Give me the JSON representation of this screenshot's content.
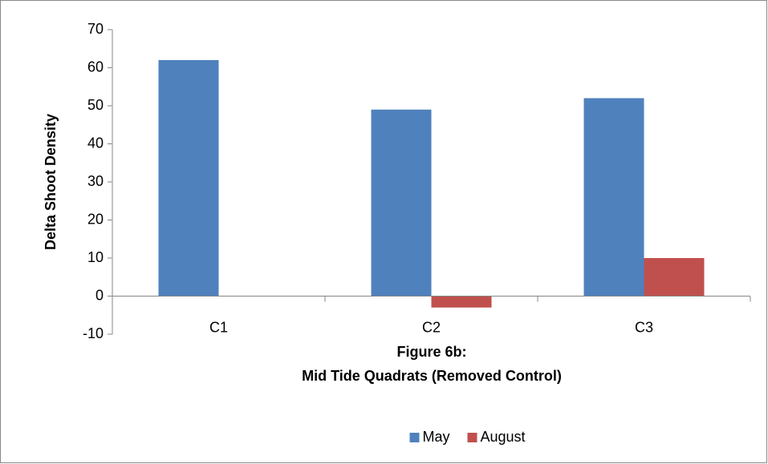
{
  "chart_data": {
    "type": "bar",
    "ylabel": "Delta Shoot Density",
    "xlabel": [
      "Figure 6b:",
      "Mid Tide Quadrats (Removed Control)"
    ],
    "categories": [
      "C1",
      "C2",
      "C3"
    ],
    "series": [
      {
        "name": "May",
        "color": "#4f81bd",
        "values": [
          62,
          49,
          52
        ]
      },
      {
        "name": "August",
        "color": "#c0504d",
        "values": [
          0,
          -3,
          10
        ]
      }
    ],
    "ylim": [
      -10,
      70
    ],
    "yticks": [
      -10,
      0,
      10,
      20,
      30,
      40,
      50,
      60,
      70
    ],
    "legend": "bottom"
  }
}
